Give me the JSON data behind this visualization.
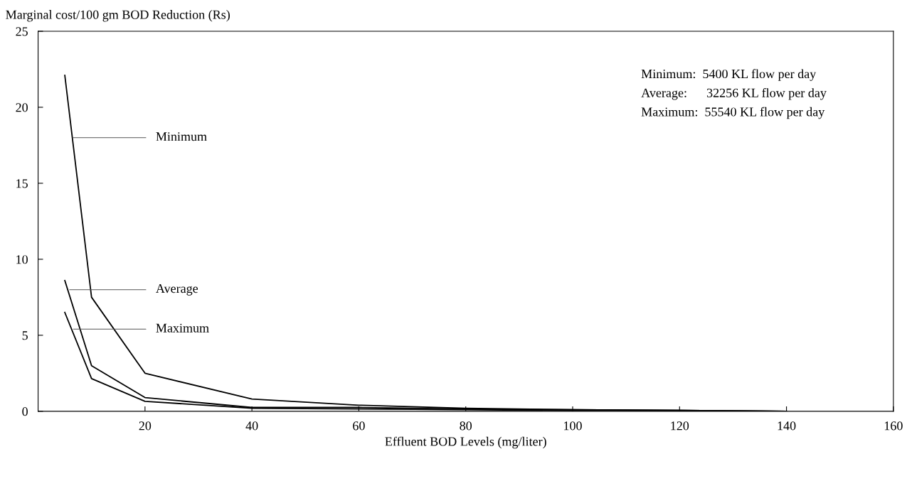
{
  "chart_data": {
    "type": "line",
    "ylabel": "Marginal cost/100 gm BOD Reduction (Rs)",
    "xlabel": "Effluent BOD Levels (mg/liter)",
    "x": [
      5,
      10,
      20,
      40,
      60,
      80,
      100,
      120,
      140
    ],
    "series": [
      {
        "color": "#000000",
        "values": [
          22.1,
          7.5,
          2.5,
          0.8,
          0.4,
          0.2,
          0.1,
          0.05,
          0
        ]
      },
      {
        "color": "#000000",
        "values": [
          8.6,
          3.0,
          0.9,
          0.25,
          0.25,
          0.15,
          0.1,
          0.05,
          0
        ]
      },
      {
        "color": "#000000",
        "values": [
          6.5,
          2.15,
          0.65,
          0.2,
          0.15,
          0.1,
          0.05,
          0.05,
          0
        ]
      }
    ],
    "xlim": [
      0,
      160
    ],
    "xticks": [
      20,
      40,
      60,
      80,
      100,
      120,
      140,
      160
    ],
    "ylim": [
      0,
      25
    ],
    "yticks": [
      0,
      5,
      10,
      15,
      20,
      25
    ],
    "grid": false,
    "legend": false,
    "marker": "none",
    "line_style": "solid",
    "annotations": [
      {
        "text": "Minimum",
        "x": 6.5,
        "y": 18
      },
      {
        "text": "Average",
        "x": 5.9,
        "y": 8.0
      },
      {
        "text": "Maximum",
        "x": 6.6,
        "y": 5.4
      },
      "Minimum:  5400 KL flow per day",
      "Average:      32256 KL flow per day",
      "Maximum:  55540 KL flow per day"
    ]
  }
}
